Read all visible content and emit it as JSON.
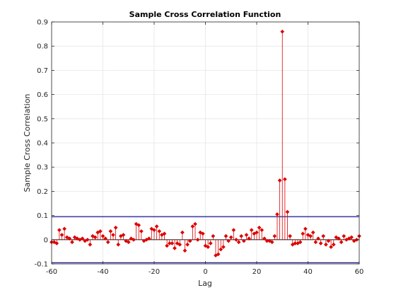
{
  "chart_data": {
    "type": "stem",
    "title": "Sample Cross Correlation Function",
    "xlabel": "Lag",
    "ylabel": "Sample Cross Correlation",
    "xlim": [
      -60,
      60
    ],
    "ylim": [
      -0.1,
      0.9
    ],
    "xticks": [
      -60,
      -40,
      -20,
      0,
      20,
      40,
      60
    ],
    "yticks": [
      -0.1,
      0,
      0.1,
      0.2,
      0.3,
      0.4,
      0.5,
      0.6,
      0.7,
      0.8,
      0.9
    ],
    "xtick_labels": [
      "-60",
      "-40",
      "-20",
      "0",
      "20",
      "40",
      "60"
    ],
    "ytick_labels": [
      "-0.1",
      "0",
      "0.1",
      "0.2",
      "0.3",
      "0.4",
      "0.5",
      "0.6",
      "0.7",
      "0.8",
      "0.9"
    ],
    "grid": true,
    "confidence_bounds": [
      0.095,
      -0.095
    ],
    "colors": {
      "stem": "#dd0000",
      "bounds": "#00008b",
      "grid": "#e6e6e6",
      "axes": "#262626"
    },
    "series": [
      {
        "x": [
          -60,
          -59,
          -58,
          -57,
          -56,
          -55,
          -54,
          -53,
          -52,
          -51,
          -50,
          -49,
          -48,
          -47,
          -46,
          -45,
          -44,
          -43,
          -42,
          -41,
          -40,
          -39,
          -38,
          -37,
          -36,
          -35,
          -34,
          -33,
          -32,
          -31,
          -30,
          -29,
          -28,
          -27,
          -26,
          -25,
          -24,
          -23,
          -22,
          -21,
          -20,
          -19,
          -18,
          -17,
          -16,
          -15,
          -14,
          -13,
          -12,
          -11,
          -10,
          -9,
          -8,
          -7,
          -6,
          -5,
          -4,
          -3,
          -2,
          -1,
          0,
          1,
          2,
          3,
          4,
          5,
          6,
          7,
          8,
          9,
          10,
          11,
          12,
          13,
          14,
          15,
          16,
          17,
          18,
          19,
          20,
          21,
          22,
          23,
          24,
          25,
          26,
          27,
          28,
          29,
          30,
          31,
          32,
          33,
          34,
          35,
          36,
          37,
          38,
          39,
          40,
          41,
          42,
          43,
          44,
          45,
          46,
          47,
          48,
          49,
          50,
          51,
          52,
          53,
          54,
          55,
          56,
          57,
          58,
          59,
          60
        ],
        "y": [
          -0.01,
          -0.01,
          -0.015,
          0.04,
          0.02,
          0.045,
          0.01,
          0.005,
          -0.01,
          0.01,
          0.005,
          0.0,
          0.005,
          -0.005,
          0.0,
          -0.02,
          0.015,
          0.01,
          0.03,
          0.035,
          0.015,
          0.005,
          -0.01,
          0.035,
          0.02,
          0.05,
          -0.02,
          0.015,
          0.02,
          -0.005,
          -0.01,
          0.005,
          0.0,
          0.065,
          0.06,
          0.035,
          -0.005,
          0.0,
          0.005,
          0.045,
          0.04,
          0.055,
          0.035,
          0.02,
          0.025,
          -0.025,
          -0.015,
          -0.015,
          -0.035,
          -0.015,
          -0.02,
          0.03,
          -0.045,
          -0.02,
          -0.005,
          0.055,
          0.065,
          0.0,
          0.03,
          0.025,
          -0.025,
          -0.03,
          -0.015,
          0.015,
          -0.065,
          -0.06,
          -0.04,
          -0.03,
          0.015,
          -0.005,
          0.01,
          0.04,
          0.0,
          -0.01,
          0.015,
          -0.005,
          0.02,
          0.005,
          0.04,
          0.025,
          0.03,
          0.05,
          0.04,
          0.005,
          -0.005,
          -0.005,
          -0.01,
          0.015,
          0.105,
          0.245,
          0.86,
          0.25,
          0.115,
          0.015,
          -0.02,
          -0.015,
          -0.015,
          -0.01,
          0.025,
          0.045,
          0.02,
          0.015,
          0.03,
          -0.01,
          0.005,
          -0.015,
          0.015,
          -0.02,
          -0.005,
          -0.03,
          -0.02,
          0.01,
          0.005,
          -0.01,
          0.015,
          0.0,
          0.005,
          0.01,
          -0.005,
          0.0,
          0.015
        ]
      }
    ]
  }
}
